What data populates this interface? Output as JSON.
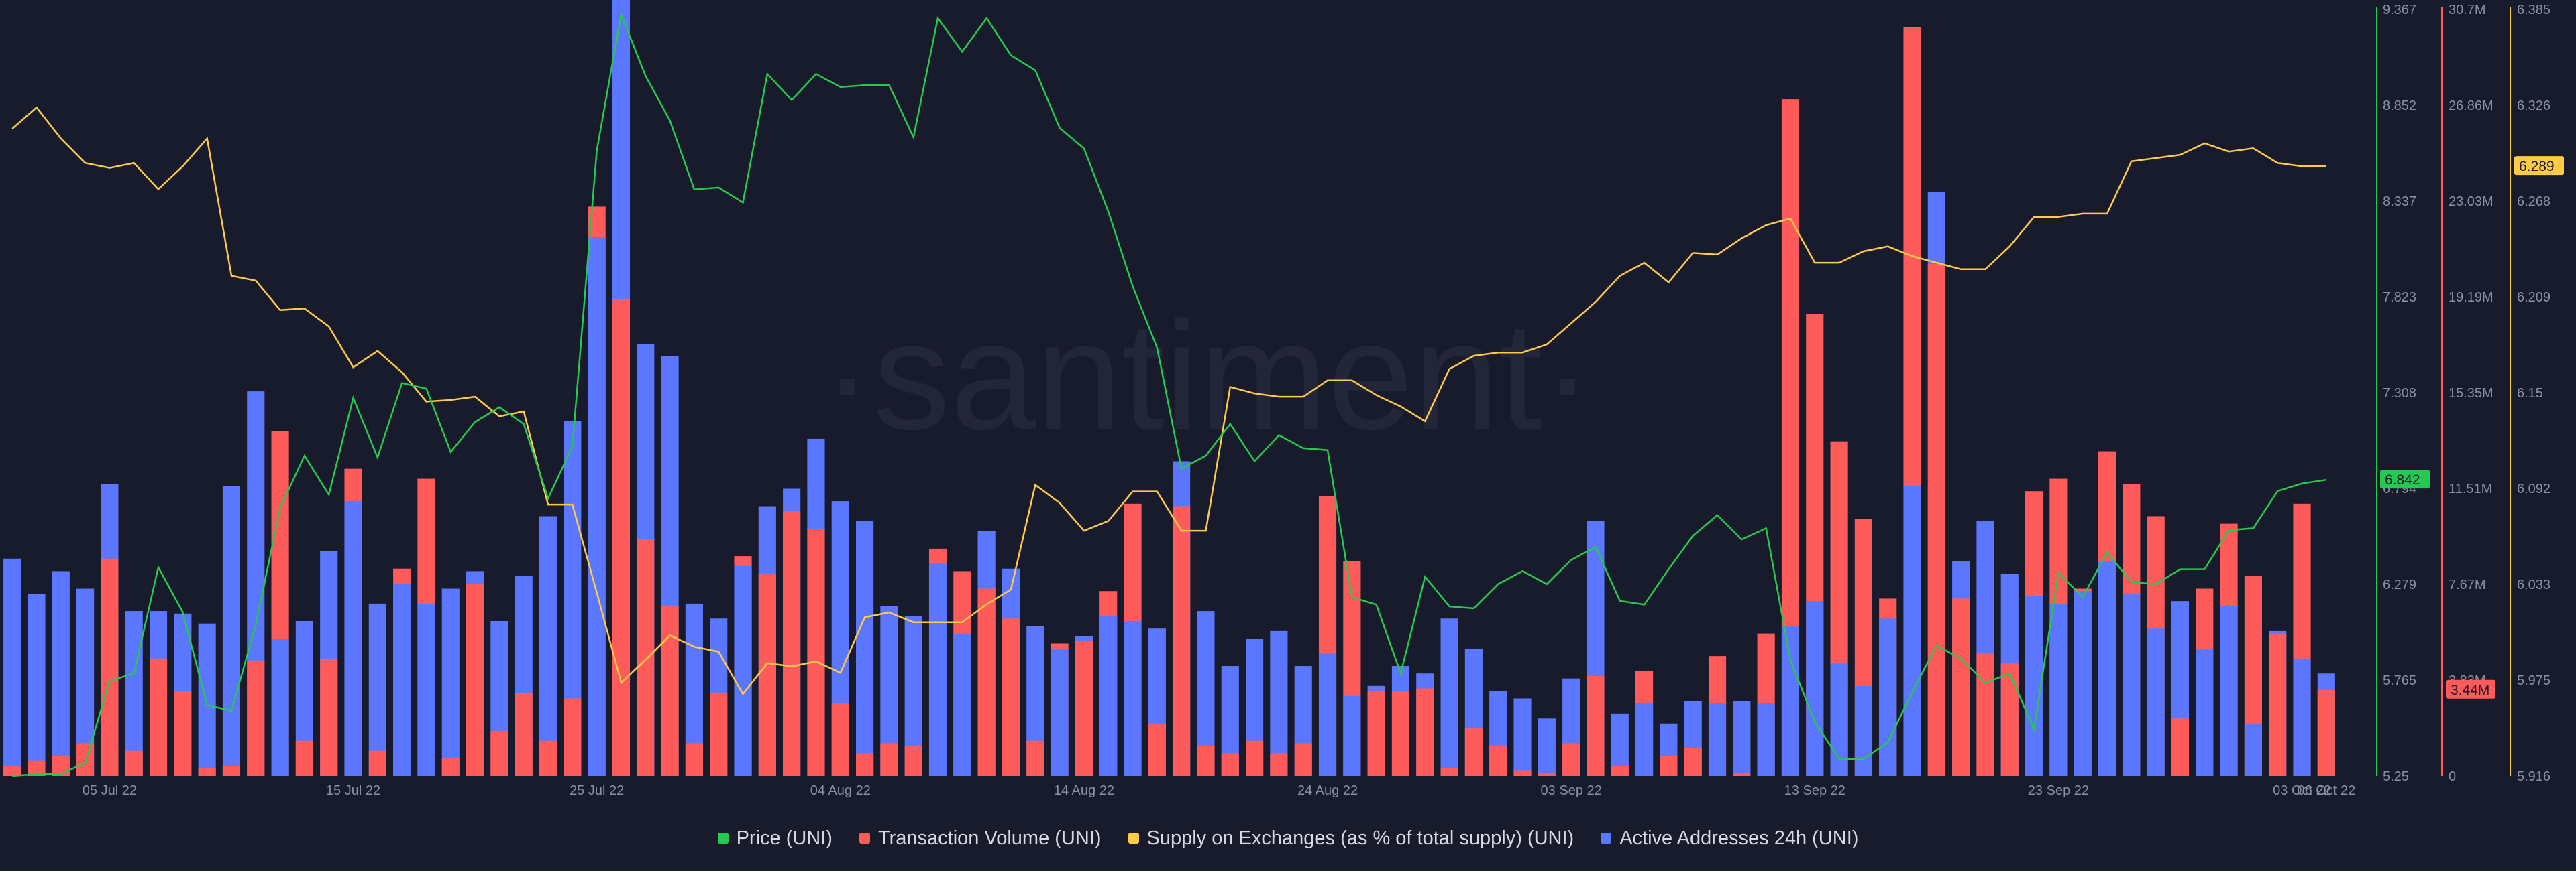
{
  "watermark": "·santiment·",
  "legend": [
    {
      "label": "Price (UNI)",
      "color": "#26c94f"
    },
    {
      "label": "Transaction Volume (UNI)",
      "color": "#ff5b5b"
    },
    {
      "label": "Supply on Exchanges (as % of total supply) (UNI)",
      "color": "#ffcb47"
    },
    {
      "label": "Active Addresses 24h (UNI)",
      "color": "#5b76ff"
    }
  ],
  "chart_data": {
    "type": "bar",
    "x_tick_labels": [
      "05 Jul 22",
      "15 Jul 22",
      "25 Jul 22",
      "04 Aug 22",
      "14 Aug 22",
      "24 Aug 22",
      "03 Sep 22",
      "13 Sep 22",
      "23 Sep 22",
      "03 Oct 22",
      "06 Oct 22"
    ],
    "x_first": "2022-07-01",
    "x_last": "2022-10-06",
    "grid": false,
    "axes": {
      "price": {
        "ticks": [
          "5.25",
          "5.765",
          "6.279",
          "6.794",
          "7.308",
          "7.823",
          "8.337",
          "8.852",
          "9.367"
        ],
        "ylim": [
          5.25,
          9.367
        ],
        "current": "6.842",
        "color": "#26c94f"
      },
      "volume": {
        "ticks": [
          "0",
          "3.83M",
          "7.67M",
          "11.51M",
          "15.35M",
          "19.19M",
          "23.03M",
          "26.86M",
          "30.7M"
        ],
        "ylim": [
          0,
          30.7
        ],
        "unit": "M",
        "current": "3.44M",
        "color": "#ff5b5b"
      },
      "supply": {
        "ticks": [
          "5.916",
          "5.975",
          "6.033",
          "6.092",
          "6.15",
          "6.209",
          "6.268",
          "6.326",
          "6.385"
        ],
        "ylim": [
          5.916,
          6.385
        ],
        "current": "6.289",
        "color": "#ffcb47"
      }
    },
    "series": [
      {
        "name": "Price (UNI)",
        "values": [
          5.25,
          5.26,
          5.26,
          5.32,
          5.76,
          5.8,
          6.37,
          6.13,
          5.63,
          5.6,
          6.06,
          6.69,
          6.97,
          6.76,
          7.28,
          6.96,
          7.36,
          7.33,
          6.99,
          7.15,
          7.23,
          7.14,
          6.74,
          7.02,
          8.61,
          9.34,
          9.01,
          8.77,
          8.4,
          8.41,
          8.33,
          9.02,
          8.88,
          9.02,
          8.95,
          8.96,
          8.96,
          8.68,
          9.32,
          9.14,
          9.32,
          9.12,
          9.04,
          8.73,
          8.62,
          8.28,
          7.88,
          7.55,
          6.9,
          6.97,
          7.14,
          6.94,
          7.08,
          7.01,
          7.0,
          6.21,
          6.17,
          5.8,
          6.32,
          6.16,
          6.15,
          6.28,
          6.35,
          6.28,
          6.41,
          6.48,
          6.19,
          6.17,
          6.36,
          6.54,
          6.65,
          6.52,
          6.58,
          5.87,
          5.54,
          5.34,
          5.34,
          5.43,
          5.7,
          5.95,
          5.88,
          5.75,
          5.8,
          5.5,
          6.34,
          6.21,
          6.45,
          6.29,
          6.28,
          6.36,
          6.36,
          6.57,
          6.58,
          6.78,
          6.82,
          6.84
        ]
      },
      {
        "name": "Transaction Volume (UNI)",
        "unit": "M",
        "values": [
          0.4,
          0.6,
          0.8,
          1.3,
          8.7,
          1.0,
          4.7,
          3.4,
          0.3,
          0.4,
          4.6,
          13.8,
          1.4,
          4.7,
          12.3,
          1.0,
          8.3,
          11.9,
          0.7,
          7.7,
          1.8,
          3.3,
          1.4,
          3.1,
          22.8,
          19.1,
          9.5,
          6.8,
          1.3,
          3.3,
          8.8,
          8.1,
          10.6,
          9.9,
          2.9,
          0.9,
          1.3,
          1.2,
          9.1,
          8.2,
          7.5,
          6.3,
          1.4,
          5.3,
          5.4,
          7.4,
          10.9,
          2.1,
          10.8,
          1.2,
          0.9,
          1.4,
          0.9,
          1.3,
          11.2,
          8.6,
          3.4,
          3.4,
          3.5,
          0.3,
          1.9,
          1.2,
          0.2,
          0.1,
          1.3,
          4.0,
          0.4,
          4.2,
          0.8,
          1.1,
          4.8,
          0.1,
          5.7,
          27.1,
          18.5,
          13.4,
          10.3,
          7.1,
          30.0,
          20.5,
          7.1,
          4.9,
          4.5,
          11.4,
          11.9,
          7.5,
          13.0,
          11.7,
          10.4,
          2.3,
          7.5,
          10.1,
          8.0,
          5.7,
          10.9,
          3.44
        ]
      },
      {
        "name": "Supply on Exchanges (as % of total supply) (UNI)",
        "values": [
          6.312,
          6.325,
          6.306,
          6.291,
          6.288,
          6.291,
          6.275,
          6.289,
          6.306,
          6.222,
          6.219,
          6.201,
          6.202,
          6.191,
          6.166,
          6.176,
          6.163,
          6.145,
          6.146,
          6.148,
          6.136,
          6.139,
          6.082,
          6.082,
          6.028,
          5.973,
          5.987,
          6.002,
          5.995,
          5.992,
          5.966,
          5.985,
          5.983,
          5.986,
          5.979,
          6.013,
          6.016,
          6.01,
          6.01,
          6.01,
          6.021,
          6.03,
          6.094,
          6.083,
          6.066,
          6.072,
          6.09,
          6.09,
          6.066,
          6.066,
          6.154,
          6.15,
          6.148,
          6.148,
          6.158,
          6.158,
          6.149,
          6.142,
          6.133,
          6.165,
          6.173,
          6.175,
          6.175,
          6.18,
          6.193,
          6.206,
          6.222,
          6.23,
          6.218,
          6.236,
          6.235,
          6.245,
          6.253,
          6.257,
          6.23,
          6.23,
          6.237,
          6.24,
          6.234,
          6.23,
          6.226,
          6.226,
          6.24,
          6.258,
          6.258,
          6.26,
          6.26,
          6.292,
          6.294,
          6.296,
          6.303,
          6.298,
          6.3,
          6.291,
          6.289,
          6.289
        ]
      },
      {
        "name": "Active Addresses 24h (UNI)",
        "unit": "M",
        "values": [
          8.7,
          7.3,
          8.2,
          7.5,
          11.7,
          6.6,
          6.6,
          6.5,
          6.1,
          11.6,
          15.4,
          5.5,
          6.2,
          9.0,
          11.0,
          6.9,
          7.7,
          6.9,
          7.5,
          8.2,
          6.2,
          8.0,
          10.4,
          14.2,
          21.6,
          31.5,
          17.3,
          16.8,
          6.9,
          6.3,
          8.4,
          10.8,
          11.5,
          13.5,
          11.0,
          10.2,
          6.8,
          6.4,
          8.5,
          5.7,
          9.8,
          8.3,
          6.0,
          5.1,
          5.6,
          6.4,
          6.2,
          5.9,
          12.6,
          6.6,
          4.4,
          5.5,
          5.8,
          4.4,
          4.9,
          3.2,
          3.6,
          4.4,
          4.1,
          6.3,
          5.1,
          3.4,
          3.1,
          2.3,
          3.9,
          10.2,
          2.5,
          2.9,
          2.1,
          3.0,
          2.9,
          3.0,
          2.9,
          6.0,
          7.0,
          4.5,
          3.6,
          6.3,
          11.6,
          23.4,
          8.6,
          10.2,
          8.1,
          7.2,
          6.9,
          7.4,
          8.6,
          7.3,
          5.9,
          7.0,
          5.1,
          6.8,
          2.1,
          5.8,
          4.7,
          4.1
        ]
      }
    ]
  }
}
